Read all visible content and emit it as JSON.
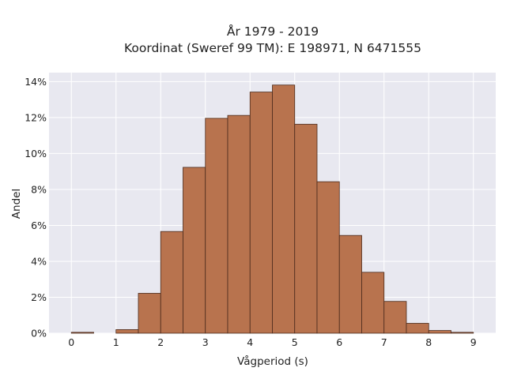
{
  "chart_data": {
    "type": "bar",
    "title_line1": "År 1979 - 2019",
    "title_line2": "Koordinat (Sweref 99 TM): E 198971, N 6471555",
    "xlabel": "Vågperiod (s)",
    "ylabel": "Andel",
    "xlim": [
      -0.5,
      9.5
    ],
    "ylim": [
      0,
      0.145
    ],
    "x_ticks": [
      0,
      1,
      2,
      3,
      4,
      5,
      6,
      7,
      8,
      9
    ],
    "x_tick_labels": [
      "0",
      "1",
      "2",
      "3",
      "4",
      "5",
      "6",
      "7",
      "8",
      "9"
    ],
    "y_ticks": [
      0,
      0.02,
      0.04,
      0.06,
      0.08,
      0.1,
      0.12,
      0.14
    ],
    "y_tick_labels": [
      "0%",
      "2%",
      "4%",
      "6%",
      "8%",
      "10%",
      "12%",
      "14%"
    ],
    "bin_width": 0.5,
    "bins": [
      {
        "start": 0.0,
        "value": 0.0005
      },
      {
        "start": 0.5,
        "value": 0.0
      },
      {
        "start": 1.0,
        "value": 0.002
      },
      {
        "start": 1.5,
        "value": 0.0222
      },
      {
        "start": 2.0,
        "value": 0.0566
      },
      {
        "start": 2.5,
        "value": 0.0923
      },
      {
        "start": 3.0,
        "value": 0.1196
      },
      {
        "start": 3.5,
        "value": 0.1212
      },
      {
        "start": 4.0,
        "value": 0.1342
      },
      {
        "start": 4.5,
        "value": 0.1381
      },
      {
        "start": 5.0,
        "value": 0.1163
      },
      {
        "start": 5.5,
        "value": 0.0843
      },
      {
        "start": 6.0,
        "value": 0.0544
      },
      {
        "start": 6.5,
        "value": 0.0339
      },
      {
        "start": 7.0,
        "value": 0.0177
      },
      {
        "start": 7.5,
        "value": 0.0055
      },
      {
        "start": 8.0,
        "value": 0.0015
      },
      {
        "start": 8.5,
        "value": 0.0005
      }
    ],
    "grid": true,
    "colors": {
      "bar_fill": "#b8734e",
      "bar_stroke": "#4a2a1c",
      "plot_background": "#e8e8f0",
      "grid": "#ffffff"
    }
  }
}
